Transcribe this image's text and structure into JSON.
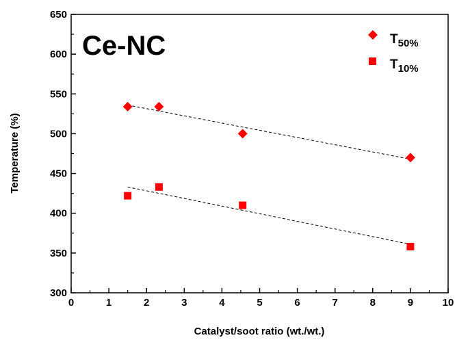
{
  "chart_data": {
    "type": "scatter",
    "title": "Ce-NC",
    "xlabel": "Catalyst/soot ratio (wt./wt.)",
    "ylabel": "Temperature (%)",
    "xlim": [
      0,
      10
    ],
    "ylim": [
      300,
      650
    ],
    "x_ticks": [
      "0",
      "1",
      "2",
      "3",
      "4",
      "5",
      "6",
      "7",
      "8",
      "9",
      "10"
    ],
    "y_ticks": [
      "300",
      "350",
      "400",
      "450",
      "500",
      "550",
      "600",
      "650"
    ],
    "grid": false,
    "legend_position": "top-right",
    "series": [
      {
        "name_main": "T",
        "name_sub": "50%",
        "marker": "diamond",
        "color": "#ff0000",
        "x": [
          1.5,
          2.33,
          4.55,
          9.0
        ],
        "y": [
          534,
          534,
          500,
          470
        ],
        "trend": {
          "x": [
            1.5,
            9.0
          ],
          "y": [
            536,
            468
          ]
        }
      },
      {
        "name_main": "T",
        "name_sub": "10%",
        "marker": "square",
        "color": "#ff0000",
        "x": [
          1.5,
          2.33,
          4.55,
          9.0
        ],
        "y": [
          422,
          433,
          410,
          358
        ],
        "trend": {
          "x": [
            1.5,
            9.0
          ],
          "y": [
            433,
            361
          ]
        }
      }
    ]
  }
}
